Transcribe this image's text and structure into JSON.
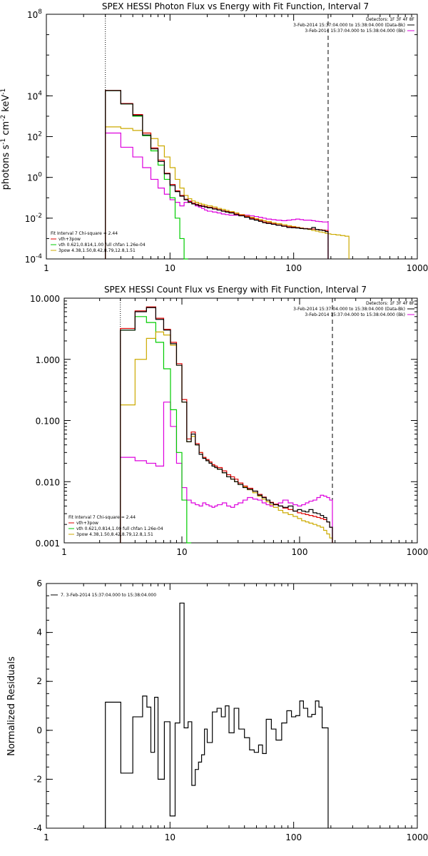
{
  "chart_data": [
    {
      "type": "line",
      "title": "SPEX HESSI Photon Flux vs Energy with Fit Function, Interval 7",
      "ylabel_parts": [
        "photons s",
        "-1",
        " cm",
        "-2",
        " keV",
        "-1"
      ],
      "xscale": "log",
      "yscale": "log",
      "xlim": [
        1,
        1000
      ],
      "ylim": [
        0.0001,
        100000000
      ],
      "x_ticks": [
        1,
        10,
        100,
        1000
      ],
      "x_tick_labels": [
        "1",
        "10",
        "100",
        "1000"
      ],
      "y_ticks": [
        0.0001,
        0.01,
        1,
        100,
        10000,
        100000000
      ],
      "y_tick_labels": [
        {
          "base": "10",
          "exp": "-4"
        },
        {
          "base": "10",
          "exp": "-2"
        },
        {
          "base": "10",
          "exp": "0"
        },
        {
          "base": "10",
          "exp": "2"
        },
        {
          "base": "10",
          "exp": "4"
        },
        {
          "base": "10",
          "exp": "8"
        }
      ],
      "vlines": [
        {
          "x": 3,
          "style": "dotted"
        },
        {
          "x": 190,
          "style": "dashed"
        }
      ],
      "legend_right": {
        "header": "Detectors: 1F 3F 4F 8F",
        "lines": [
          {
            "text": "3-Feb-2014 15:37:04.000 to 15:38:04.000 (Data-Bk)",
            "color": "#000000"
          },
          {
            "text": "3-Feb-2014 15:37:04.000 to 15:38:04.000 (Bk)",
            "color": "#dd00dd"
          }
        ]
      },
      "legend_left": {
        "header": "Fit Interval  7   Chi-square = 2.44",
        "lines": [
          {
            "text": "vth+3pow",
            "color": "#dd0000"
          },
          {
            "text": "vth 0.621,0.814,1.00  full chfan 1.26e-04",
            "color": "#00cc00"
          },
          {
            "text": "3pow 4.38,1.50,8.42,8.79,12.8,1.51",
            "color": "#ccaa00"
          }
        ]
      },
      "edges": [
        3,
        3.5,
        4,
        4.5,
        5,
        5.5,
        6,
        6.5,
        7,
        7.5,
        8,
        8.5,
        9,
        10,
        11,
        12,
        13,
        14,
        15,
        16,
        17,
        18,
        19,
        20,
        22,
        24,
        26,
        28,
        30,
        33,
        36,
        40,
        44,
        48,
        52,
        56,
        60,
        66,
        72,
        80,
        88,
        96,
        104,
        112,
        120,
        130,
        140,
        150,
        160,
        170,
        180,
        190,
        200,
        220,
        240,
        260,
        280
      ],
      "series": [
        {
          "name": "Data-Bk",
          "color": "#000000",
          "values": [
            18000,
            18000,
            4000,
            4000,
            1100,
            1100,
            120,
            120,
            25,
            25,
            6,
            6,
            1.5,
            0.4,
            0.2,
            0.12,
            0.08,
            0.06,
            0.05,
            0.045,
            0.04,
            0.038,
            0.035,
            0.032,
            0.028,
            0.025,
            0.022,
            0.02,
            0.018,
            0.015,
            0.013,
            0.011,
            0.009,
            0.008,
            0.007,
            0.006,
            0.0055,
            0.005,
            0.0045,
            0.004,
            0.0035,
            0.0034,
            0.0033,
            0.0031,
            0.003,
            0.0029,
            0.0035,
            0.0028,
            0.0026,
            0.0025,
            0.0022
          ]
        },
        {
          "name": "vth+3pow",
          "color": "#dd0000",
          "values": [
            18500,
            18500,
            4200,
            4200,
            1200,
            1200,
            150,
            150,
            28,
            28,
            7,
            7,
            1.6,
            0.45,
            0.22,
            0.13,
            0.085,
            0.065,
            0.055,
            0.048,
            0.043,
            0.04,
            0.037,
            0.034,
            0.03,
            0.026,
            0.023,
            0.021,
            0.019,
            0.016,
            0.014,
            0.012,
            0.01,
            0.0085,
            0.0075,
            0.0065,
            0.006,
            0.0053,
            0.0047,
            0.0042,
            0.0038,
            0.0036,
            0.0034,
            0.0032,
            0.0031,
            0.003,
            0.0029,
            0.0028,
            0.0027,
            0.0026,
            0.0025
          ]
        },
        {
          "name": "3pow",
          "color": "#ccaa00",
          "values": [
            300,
            300,
            250,
            250,
            200,
            200,
            150,
            150,
            80,
            80,
            35,
            35,
            10,
            3,
            0.8,
            0.3,
            0.13,
            0.09,
            0.07,
            0.06,
            0.053,
            0.048,
            0.044,
            0.04,
            0.035,
            0.03,
            0.027,
            0.024,
            0.021,
            0.018,
            0.015,
            0.013,
            0.011,
            0.0095,
            0.0085,
            0.0075,
            0.0068,
            0.006,
            0.0054,
            0.0048,
            0.0043,
            0.0039,
            0.0036,
            0.0033,
            0.003,
            0.0028,
            0.0025,
            0.0023,
            0.0021,
            0.002,
            0.0018,
            0.0017,
            0.0016,
            0.0015,
            0.0014,
            0.0013
          ]
        },
        {
          "name": "vth",
          "color": "#00cc00",
          "values": [
            18000,
            18000,
            4000,
            4000,
            1000,
            1000,
            110,
            110,
            20,
            20,
            4,
            4,
            0.8,
            0.1,
            0.01,
            0.001,
            0.0001
          ]
        },
        {
          "name": "Bk",
          "color": "#dd00dd",
          "values": [
            150,
            150,
            30,
            30,
            10,
            10,
            3,
            3,
            0.8,
            0.8,
            0.3,
            0.3,
            0.15,
            0.08,
            0.06,
            0.04,
            0.06,
            0.07,
            0.05,
            0.04,
            0.035,
            0.03,
            0.025,
            0.022,
            0.02,
            0.018,
            0.016,
            0.015,
            0.014,
            0.014,
            0.015,
            0.014,
            0.013,
            0.012,
            0.011,
            0.01,
            0.009,
            0.0085,
            0.008,
            0.0075,
            0.008,
            0.0085,
            0.009,
            0.0085,
            0.008,
            0.008,
            0.0075,
            0.007,
            0.0068,
            0.0065,
            0.0065
          ]
        }
      ]
    },
    {
      "type": "line",
      "title": "SPEX HESSI Count Flux vs Energy with Fit Function, Interval 7",
      "ylabel_parts": [],
      "xscale": "log",
      "yscale": "log",
      "xlim": [
        1,
        1000
      ],
      "ylim": [
        0.001,
        10
      ],
      "x_ticks": [
        1,
        10,
        100,
        1000
      ],
      "x_tick_labels": [
        "1",
        "10",
        "100",
        "1000"
      ],
      "y_ticks": [
        0.001,
        0.01,
        0.1,
        1,
        10
      ],
      "y_tick_labels": [
        {
          "base": "0.001",
          "exp": ""
        },
        {
          "base": "0.010",
          "exp": ""
        },
        {
          "base": "0.100",
          "exp": ""
        },
        {
          "base": "1.000",
          "exp": ""
        },
        {
          "base": "10.000",
          "exp": ""
        }
      ],
      "vlines": [
        {
          "x": 3,
          "style": "dotted"
        },
        {
          "x": 190,
          "style": "dashed"
        }
      ],
      "legend_right": {
        "header": "Detectors: 1F 3F 4F 8F",
        "lines": [
          {
            "text": "3-Feb-2014 15:37:04.000 to 15:38:04.000 (Data-Bk)",
            "color": "#000000"
          },
          {
            "text": "3-Feb-2014 15:37:04.000 to 15:38:04.000 (Bk)",
            "color": "#dd00dd"
          }
        ]
      },
      "legend_left": {
        "header": "Fit Interval  7   Chi-square = 2.44",
        "lines": [
          {
            "text": "vth+3pow",
            "color": "#dd0000"
          },
          {
            "text": "vth 0.621,0.814,1.00  full chfan 1.26e-04",
            "color": "#00cc00"
          },
          {
            "text": "3pow 4.38,1.50,8.42,8.79,12.8,1.51",
            "color": "#ccaa00"
          }
        ]
      },
      "edges": [
        3,
        3.5,
        4,
        4.5,
        5,
        5.5,
        6,
        6.5,
        7,
        7.5,
        8,
        8.5,
        9,
        10,
        11,
        12,
        13,
        14,
        15,
        16,
        17,
        18,
        19,
        20,
        22,
        24,
        26,
        28,
        30,
        33,
        36,
        40,
        44,
        48,
        52,
        56,
        60,
        66,
        72,
        80,
        88,
        96,
        104,
        112,
        120,
        130,
        140,
        150,
        160,
        170,
        180,
        190
      ],
      "series": [
        {
          "name": "Data-Bk",
          "color": "#000000",
          "values": [
            3,
            3,
            6,
            6,
            7,
            7,
            4.5,
            4.5,
            3,
            3,
            1.8,
            1.8,
            0.8,
            0.2,
            0.045,
            0.06,
            0.04,
            0.028,
            0.024,
            0.022,
            0.02,
            0.018,
            0.017,
            0.016,
            0.014,
            0.012,
            0.011,
            0.01,
            0.009,
            0.008,
            0.0075,
            0.007,
            0.006,
            0.0055,
            0.005,
            0.0045,
            0.0042,
            0.004,
            0.0038,
            0.004,
            0.0033,
            0.0035,
            0.0033,
            0.0032,
            0.0035,
            0.0031,
            0.003,
            0.0028,
            0.0026,
            0.0022,
            0.0018
          ]
        },
        {
          "name": "vth+3pow",
          "color": "#dd0000",
          "values": [
            3.2,
            3.2,
            6.2,
            6.2,
            7.2,
            7.2,
            4.7,
            4.7,
            3.1,
            3.1,
            1.9,
            1.9,
            0.85,
            0.22,
            0.05,
            0.065,
            0.042,
            0.03,
            0.025,
            0.023,
            0.021,
            0.019,
            0.018,
            0.017,
            0.015,
            0.013,
            0.012,
            0.011,
            0.0095,
            0.0085,
            0.0078,
            0.007,
            0.0062,
            0.0056,
            0.005,
            0.0046,
            0.0043,
            0.004,
            0.0037,
            0.0035,
            0.0033,
            0.0031,
            0.003,
            0.0029,
            0.0028,
            0.0027,
            0.0026,
            0.0025,
            0.0024,
            0.0022,
            0.0018
          ]
        },
        {
          "name": "3pow",
          "color": "#ccaa00",
          "values": [
            0.18,
            0.18,
            1.0,
            1.0,
            2.2,
            2.2,
            2.8,
            2.8,
            2.5,
            2.5,
            1.7,
            1.7,
            0.8,
            0.2,
            0.045,
            0.055,
            0.04,
            0.03,
            0.025,
            0.022,
            0.02,
            0.018,
            0.017,
            0.016,
            0.014,
            0.012,
            0.011,
            0.01,
            0.009,
            0.0082,
            0.0074,
            0.0066,
            0.0058,
            0.0052,
            0.0047,
            0.0042,
            0.0038,
            0.0034,
            0.0031,
            0.0029,
            0.0027,
            0.0025,
            0.0023,
            0.0022,
            0.0021,
            0.002,
            0.0019,
            0.0018,
            0.0016,
            0.0014,
            0.0012
          ]
        },
        {
          "name": "vth",
          "color": "#00cc00",
          "values": [
            3,
            3,
            5,
            5,
            4,
            4,
            1.9,
            1.9,
            0.7,
            0.7,
            0.15,
            0.15,
            0.03,
            0.005,
            0.001
          ]
        },
        {
          "name": "Bk",
          "color": "#dd00dd",
          "values": [
            0.025,
            0.025,
            0.022,
            0.022,
            0.02,
            0.02,
            0.018,
            0.018,
            0.2,
            0.2,
            0.08,
            0.08,
            0.02,
            0.008,
            0.005,
            0.0045,
            0.0042,
            0.004,
            0.0045,
            0.0042,
            0.004,
            0.0038,
            0.004,
            0.0042,
            0.0045,
            0.004,
            0.0038,
            0.0042,
            0.0045,
            0.005,
            0.0055,
            0.0052,
            0.005,
            0.0045,
            0.0042,
            0.004,
            0.0042,
            0.0045,
            0.005,
            0.0045,
            0.0042,
            0.004,
            0.0042,
            0.0045,
            0.0048,
            0.005,
            0.0055,
            0.006,
            0.0058,
            0.0055,
            0.005
          ]
        }
      ]
    },
    {
      "type": "line",
      "title": "",
      "ylabel": "Normalized Residuals",
      "xscale": "log",
      "yscale": "linear",
      "xlim": [
        1,
        1000
      ],
      "ylim": [
        -4,
        6
      ],
      "x_ticks": [
        1,
        10,
        100,
        1000
      ],
      "x_tick_labels": [
        "1",
        "10",
        "100",
        "1000"
      ],
      "y_ticks": [
        -4,
        -2,
        0,
        2,
        4,
        6
      ],
      "y_tick_labels": [
        "-4",
        "-2",
        "0",
        "2",
        "4",
        "6"
      ],
      "legend": "7.  3-Feb-2014 15:37:04.000 to 15:38:04.000",
      "edges": [
        3,
        4,
        5,
        6,
        6.5,
        7,
        7.5,
        8,
        9,
        10,
        11,
        12,
        13,
        14,
        15,
        16,
        17,
        18,
        19,
        20,
        22,
        24,
        26,
        28,
        30,
        33,
        36,
        40,
        44,
        48,
        52,
        56,
        60,
        66,
        72,
        80,
        88,
        96,
        104,
        112,
        120,
        130,
        140,
        150,
        160,
        170,
        180,
        190
      ],
      "values": [
        1.15,
        -1.75,
        0.55,
        1.4,
        0.95,
        -0.9,
        1.35,
        -2.0,
        0.35,
        -3.5,
        0.3,
        5.2,
        0.1,
        0.35,
        -2.25,
        -1.6,
        -1.3,
        -1.0,
        0.05,
        -0.5,
        0.75,
        0.9,
        0.55,
        1.0,
        -0.1,
        0.9,
        0.05,
        -0.3,
        -0.8,
        -0.9,
        -0.6,
        -0.95,
        0.45,
        0.05,
        -0.4,
        0.3,
        0.8,
        0.55,
        0.6,
        1.2,
        0.9,
        0.55,
        0.65,
        1.2,
        0.95,
        0.1,
        0.1
      ]
    }
  ]
}
